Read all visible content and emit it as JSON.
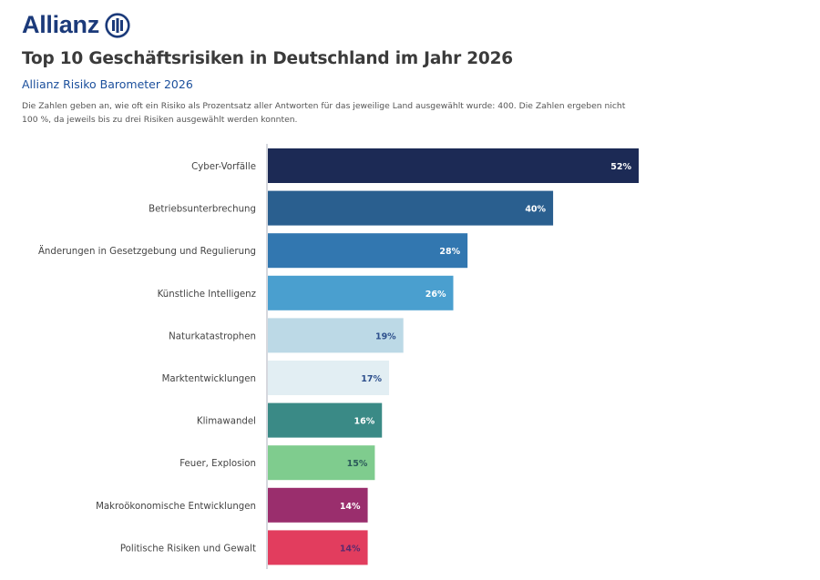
{
  "header": {
    "brand": "Allianz",
    "brand_icon": "allianz-eagle-logo-icon",
    "brand_color": "#1b3a7a",
    "title": "Top 10 Geschäftsrisiken in Deutschland im Jahr 2026",
    "subtitle": "Allianz Risiko Barometer 2026",
    "note": "Die Zahlen geben an, wie oft ein Risiko als Prozentsatz aller Antworten für das jeweilige Land ausgewählt wurde: 400. Die Zahlen ergeben nicht 100 %, da jeweils bis zu drei Risiken ausgewählt werden konnten."
  },
  "chart_data": {
    "type": "bar",
    "orientation": "horizontal",
    "title": "Top 10 Geschäftsrisiken in Deutschland im Jahr 2026",
    "subtitle": "Allianz Risiko Barometer 2026",
    "xlabel": "",
    "ylabel": "",
    "xlim": [
      0,
      52
    ],
    "grid": false,
    "legend": "none",
    "unit": "%",
    "categories": [
      "Cyber-Vorfälle",
      "Betriebsunterbrechung",
      "Änderungen in Gesetzgebung und Regulierung",
      "Künstliche Intelligenz",
      "Naturkatastrophen",
      "Marktentwicklungen",
      "Klimawandel",
      "Feuer, Explosion",
      "Makroökonomische Entwicklungen",
      "Politische Risiken und Gewalt"
    ],
    "values": [
      52,
      40,
      28,
      26,
      19,
      17,
      16,
      15,
      14,
      14
    ],
    "value_labels": [
      "52%",
      "40%",
      "28%",
      "26%",
      "19%",
      "17%",
      "16%",
      "15%",
      "14%",
      "14%"
    ],
    "bar_colors": [
      "#1c2a55",
      "#2a5f8f",
      "#3277b0",
      "#4a9fcf",
      "#bcd9e6",
      "#e2eef3",
      "#3a8a86",
      "#7fcc8e",
      "#9a2e6d",
      "#e23d5e"
    ],
    "label_colors": [
      "#ffffff",
      "#ffffff",
      "#ffffff",
      "#ffffff",
      "#2d4f8c",
      "#2d4f8c",
      "#ffffff",
      "#2b5a5a",
      "#ffffff",
      "#5a2a6e"
    ]
  }
}
